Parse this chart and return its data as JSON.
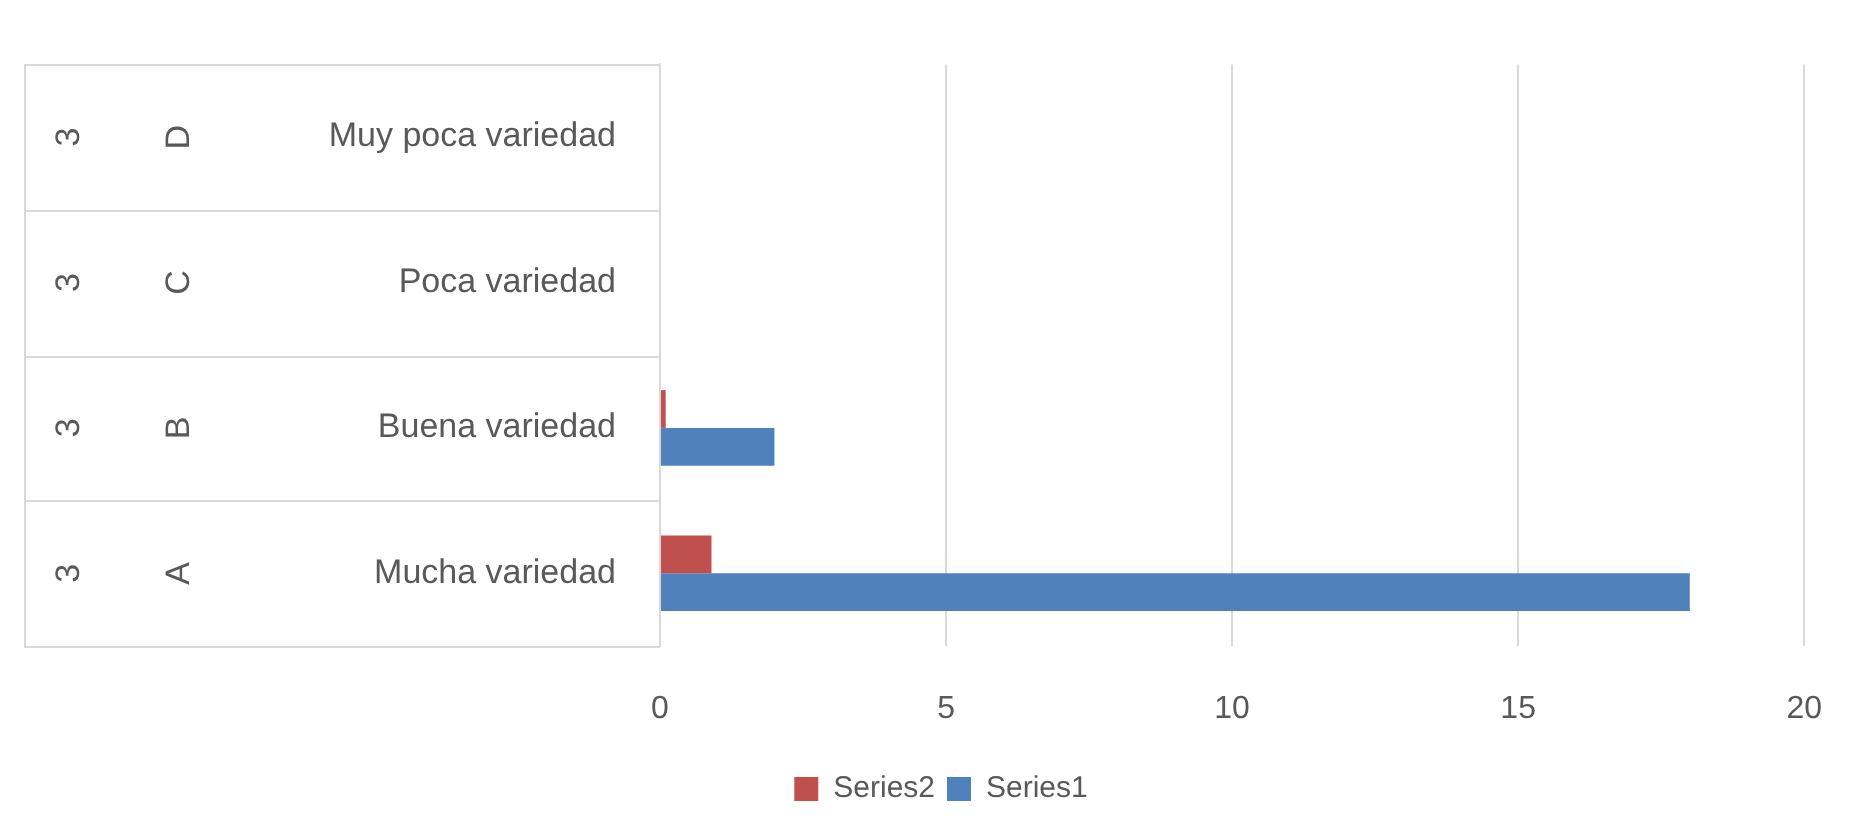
{
  "chart_data": {
    "type": "bar",
    "orientation": "horizontal",
    "categories": [
      "Muy poca variedad",
      "Poca variedad",
      "Buena variedad",
      "Mucha variedad"
    ],
    "series": [
      {
        "name": "Series2",
        "color": "#c0504d",
        "values": [
          0,
          0,
          0.1,
          0.9
        ]
      },
      {
        "name": "Series1",
        "color": "#4f81bd",
        "values": [
          0,
          0,
          2,
          18
        ]
      }
    ],
    "xlim": [
      0,
      20
    ],
    "xticks": [
      0,
      5,
      10,
      15,
      20
    ],
    "grid": "x",
    "legend": "bottom",
    "annotations": [
      "D",
      "C",
      "B",
      "A",
      "3",
      "3",
      "3",
      "3"
    ]
  }
}
